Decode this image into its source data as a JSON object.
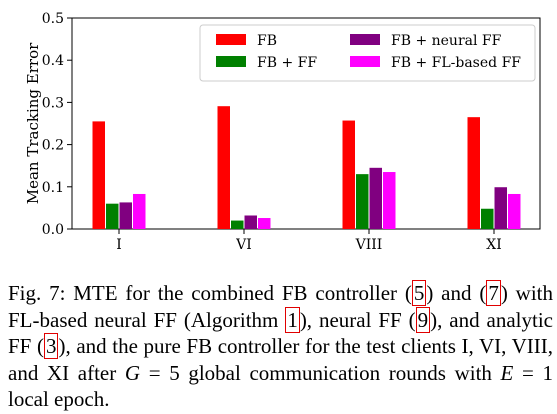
{
  "chart_data": {
    "type": "bar",
    "categories": [
      "I",
      "VI",
      "VIII",
      "XI"
    ],
    "ylabel": "Mean Tracking Error",
    "xlabel": "",
    "ylim": [
      0,
      0.5
    ],
    "yticks": [
      "0.0",
      "0.1",
      "0.2",
      "0.3",
      "0.4",
      "0.5"
    ],
    "grid": false,
    "legend_position": "top-right",
    "series": [
      {
        "name": "FB",
        "color": "#ff0000",
        "values": [
          0.255,
          0.291,
          0.257,
          0.265
        ]
      },
      {
        "name": "FB + FF",
        "color": "#008000",
        "values": [
          0.06,
          0.02,
          0.13,
          0.048
        ]
      },
      {
        "name": "FB + neural FF",
        "color": "#800080",
        "values": [
          0.063,
          0.032,
          0.145,
          0.099
        ]
      },
      {
        "name": "FB + FL-based FF",
        "color": "#ff00ff",
        "values": [
          0.083,
          0.026,
          0.135,
          0.083
        ]
      }
    ]
  },
  "caption": {
    "t1": "Fig. 7: MTE for the combined FB controller (",
    "r1": "5",
    "t2": ") and (",
    "r2": "7",
    "t3": ") with FL-based neural FF (Algorithm ",
    "r3": "1",
    "t4": "), neural FF (",
    "r4": "9",
    "t5": "), and analytic FF (",
    "r5": "3",
    "t6": "), and the pure FB controller for the test clients I, VI, VIII, and XI after ",
    "var_g": "G",
    "t7": " = 5 global communication rounds with ",
    "var_e": "E",
    "t8": " = 1 local epoch."
  }
}
